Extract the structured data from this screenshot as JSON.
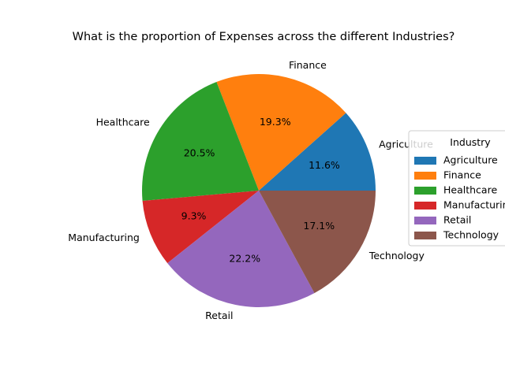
{
  "chart_data": {
    "type": "pie",
    "title": "What is the proportion of Expenses across the different Industries?",
    "categories": [
      "Agriculture",
      "Finance",
      "Healthcare",
      "Manufacturing",
      "Retail",
      "Technology"
    ],
    "values": [
      11.6,
      19.3,
      20.5,
      9.3,
      22.2,
      17.1
    ],
    "value_labels": [
      "11.6%",
      "19.3%",
      "20.5%",
      "9.3%",
      "22.2%",
      "17.1%"
    ],
    "colors": [
      "#1f77b4",
      "#ff7f0e",
      "#2ca02c",
      "#d62728",
      "#9467bd",
      "#8c564b"
    ],
    "legend": {
      "title": "Industry",
      "placement": "center-right"
    },
    "start_angle_deg": 0,
    "direction": "counterclockwise"
  }
}
